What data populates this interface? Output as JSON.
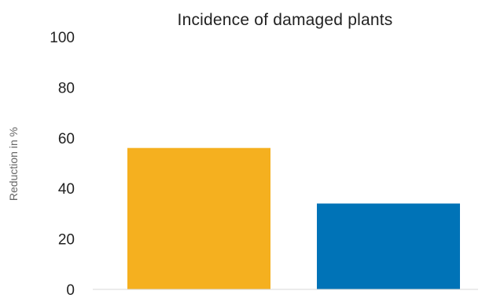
{
  "chart_data": {
    "type": "bar",
    "title": "Incidence of damaged plants",
    "xlabel": "",
    "ylabel": "Reduction in %",
    "categories": [
      "",
      ""
    ],
    "values": [
      56,
      34
    ],
    "bar_colors": [
      "#f5b01f",
      "#0073b7"
    ],
    "ylim": [
      0,
      100
    ],
    "yticks": [
      0,
      20,
      40,
      60,
      80,
      100
    ],
    "grid": false,
    "legend": "none"
  }
}
